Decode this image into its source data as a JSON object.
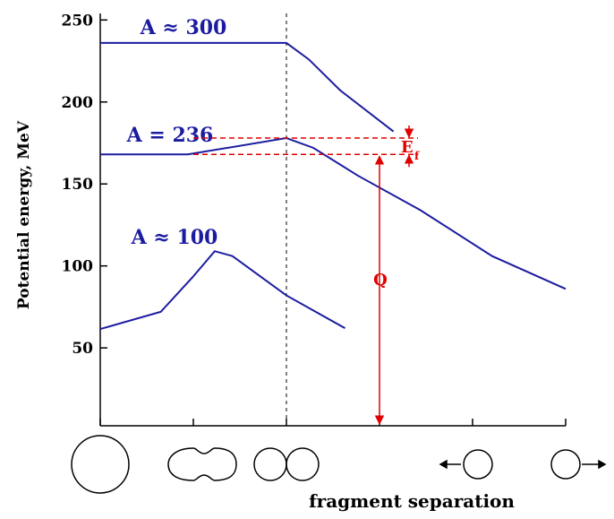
{
  "chart_data": {
    "type": "line",
    "y_label": "Potential energy, MeV",
    "x_label": "fragment separation",
    "xlim": [
      0,
      5
    ],
    "ylim": [
      2.5,
      254
    ],
    "yticks": [
      50,
      100,
      150,
      200,
      250
    ],
    "series": [
      {
        "name": "A ≈ 300",
        "color": "#1c1ca0",
        "x": [
          0,
          2,
          2.24,
          2.58,
          3.15
        ],
        "values": [
          236,
          236,
          226,
          207,
          182
        ]
      },
      {
        "name": "A = 236",
        "color": "#1c1ca0",
        "x": [
          0,
          0.94,
          2,
          2.29,
          2.77,
          3.44,
          4.21,
          5
        ],
        "values": [
          168,
          168,
          178,
          172,
          155,
          134,
          106,
          86
        ]
      },
      {
        "name": "A ≈ 100",
        "color": "#1c1ca0",
        "x": [
          0,
          0.65,
          0.99,
          1.23,
          1.42,
          2,
          2.63
        ],
        "values": [
          61.5,
          72,
          93,
          109,
          106,
          82,
          62
        ]
      }
    ],
    "annotations": {
      "q": "Q",
      "ef": "E",
      "ef_sub": "f"
    }
  }
}
